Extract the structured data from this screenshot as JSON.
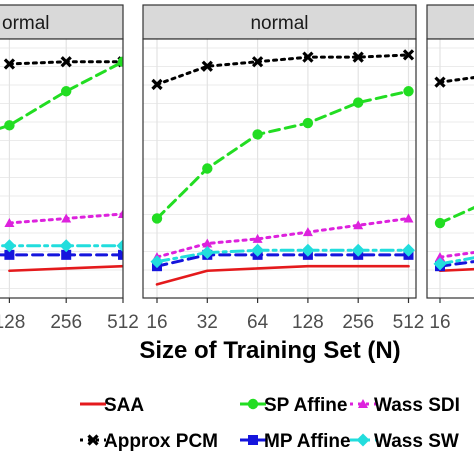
{
  "chart_data": {
    "type": "line",
    "xlabel": "Size of Training Set (N)",
    "x_ticks": [
      16,
      32,
      64,
      128,
      256,
      512
    ],
    "x_scale": "log2",
    "grid": true,
    "legend_placement": "bottom",
    "panels": [
      {
        "strip": "normal",
        "strip_visible": "ormal",
        "series": [
          {
            "key": "saa",
            "x": [
              128,
              256,
              512
            ],
            "y": [
              0.0,
              0.01,
              0.02
            ]
          },
          {
            "key": "pcm",
            "x": [
              128,
              256,
              512
            ],
            "y": [
              0.91,
              0.92,
              0.92
            ]
          },
          {
            "key": "sp",
            "x": [
              64,
              128,
              256,
              512
            ],
            "y": [
              0.56,
              0.64,
              0.79,
              0.92
            ]
          },
          {
            "key": "mp",
            "x": [
              64,
              128,
              256,
              512
            ],
            "y": [
              0.07,
              0.07,
              0.07,
              0.07
            ]
          },
          {
            "key": "wsdp",
            "x": [
              128,
              256,
              512
            ],
            "y": [
              0.21,
              0.23,
              0.25
            ]
          },
          {
            "key": "wsw",
            "x": [
              64,
              128,
              256,
              512
            ],
            "y": [
              0.11,
              0.11,
              0.11,
              0.11
            ]
          }
        ]
      },
      {
        "strip": "normal",
        "strip_visible": "normal",
        "series": [
          {
            "key": "saa",
            "x": [
              16,
              32,
              64,
              128,
              256,
              512
            ],
            "y": [
              -0.06,
              0.0,
              0.01,
              0.02,
              0.02,
              0.02
            ]
          },
          {
            "key": "pcm",
            "x": [
              16,
              32,
              64,
              128,
              256,
              512
            ],
            "y": [
              0.82,
              0.9,
              0.92,
              0.94,
              0.94,
              0.95
            ]
          },
          {
            "key": "sp",
            "x": [
              16,
              32,
              64,
              128,
              256,
              512
            ],
            "y": [
              0.23,
              0.45,
              0.6,
              0.65,
              0.74,
              0.79
            ]
          },
          {
            "key": "mp",
            "x": [
              16,
              32,
              64,
              128,
              256,
              512
            ],
            "y": [
              0.02,
              0.07,
              0.07,
              0.07,
              0.07,
              0.07
            ]
          },
          {
            "key": "wsdp",
            "x": [
              16,
              32,
              64,
              128,
              256,
              512
            ],
            "y": [
              0.06,
              0.12,
              0.14,
              0.17,
              0.2,
              0.23
            ]
          },
          {
            "key": "wsw",
            "x": [
              16,
              32,
              64,
              128,
              256,
              512
            ],
            "y": [
              0.04,
              0.08,
              0.09,
              0.09,
              0.09,
              0.09
            ]
          }
        ]
      },
      {
        "strip": "",
        "strip_visible": "",
        "series": [
          {
            "key": "saa",
            "x": [
              16,
              32
            ],
            "y": [
              0.0,
              0.01
            ]
          },
          {
            "key": "pcm",
            "x": [
              16,
              32
            ],
            "y": [
              0.83,
              0.86
            ]
          },
          {
            "key": "sp",
            "x": [
              16,
              32
            ],
            "y": [
              0.21,
              0.31
            ]
          },
          {
            "key": "mp",
            "x": [
              16,
              32
            ],
            "y": [
              0.02,
              0.05
            ]
          },
          {
            "key": "wsdp",
            "x": [
              16,
              32
            ],
            "y": [
              0.06,
              0.09
            ]
          },
          {
            "key": "wsw",
            "x": [
              16,
              32
            ],
            "y": [
              0.03,
              0.07
            ]
          }
        ]
      }
    ],
    "legend": [
      {
        "key": "saa",
        "label": "SAA",
        "color": "#e41a1c",
        "marker": "none",
        "dash": "solid"
      },
      {
        "key": "sp",
        "label": "SP Affine",
        "color": "#22dd22",
        "marker": "circle",
        "dash": "dashed"
      },
      {
        "key": "wsdp",
        "label": "Wass SDP",
        "label_visible": "Wass SDI",
        "color": "#dd22dd",
        "marker": "triangle",
        "dash": "dotted"
      },
      {
        "key": "pcm",
        "label": "Approx PCM",
        "color": "#000000",
        "marker": "x",
        "dash": "dotted"
      },
      {
        "key": "mp",
        "label": "MP Affine",
        "color": "#1515dd",
        "marker": "square",
        "dash": "dashed"
      },
      {
        "key": "wsw",
        "label": "Wass SW",
        "label_visible": "Wass SW",
        "color": "#22dddd",
        "marker": "diamond",
        "dash": "dashdot"
      }
    ]
  }
}
